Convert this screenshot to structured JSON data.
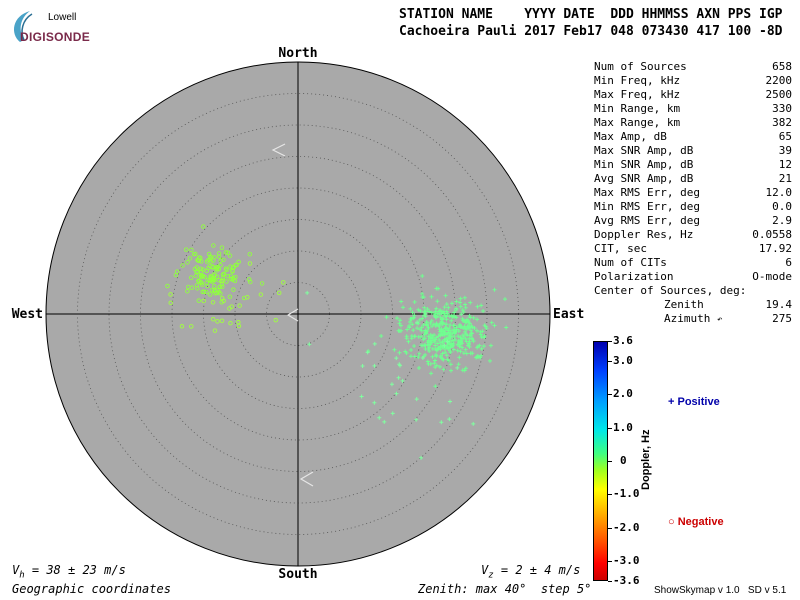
{
  "logo": {
    "top": "Lowell",
    "bottom": "DIGISONDE"
  },
  "header": {
    "line1": "STATION NAME    YYYY DATE  DDD HHMMSS AXN PPS IGP",
    "line2": "Cachoeira Pauli 2017 Feb17 048 073430 417 100 -8D"
  },
  "stats": [
    {
      "label": "Num of Sources",
      "value": "658"
    },
    {
      "label": "Min Freq, kHz",
      "value": "2200"
    },
    {
      "label": "Max Freq, kHz",
      "value": "2500"
    },
    {
      "label": "Min Range, km",
      "value": "330"
    },
    {
      "label": "Max Range, km",
      "value": "382"
    },
    {
      "label": "Max Amp, dB",
      "value": "65"
    },
    {
      "label": "Max SNR Amp, dB",
      "value": "39"
    },
    {
      "label": "Min SNR Amp, dB",
      "value": "12"
    },
    {
      "label": "Avg SNR Amp, dB",
      "value": "21"
    },
    {
      "label": "Max RMS Err, deg",
      "value": "12.0"
    },
    {
      "label": "Min RMS Err, deg",
      "value": "0.0"
    },
    {
      "label": "Avg RMS Err, deg",
      "value": "2.9"
    },
    {
      "label": "Doppler Res, Hz",
      "value": "0.0558"
    },
    {
      "label": "CIT, sec",
      "value": "17.92"
    },
    {
      "label": "Num of CITs",
      "value": "6"
    },
    {
      "label": "Polarization",
      "value": "O-mode"
    },
    {
      "label": "Center of Sources, deg:",
      "value": ""
    }
  ],
  "center": {
    "zenith_label": "Zenith",
    "zenith_value": "19.4",
    "azimuth_label": "Azimuth",
    "azimuth_value": "275"
  },
  "compass": {
    "north": "North",
    "south": "South",
    "east": "East",
    "west": "West"
  },
  "colorbar": {
    "title": "Doppler, Hz",
    "min": -3.6,
    "max": 3.6,
    "ticks": [
      "3.6",
      "3.0",
      "2.0",
      "1.0",
      "0",
      "-1.0",
      "-2.0",
      "-3.0",
      "-3.6"
    ]
  },
  "legend": {
    "positive": "Positive",
    "negative": "Negative"
  },
  "footer": {
    "vh": "V  = 38 ± 23 m/s",
    "vz": "V  = 2 ± 4 m/s",
    "coords": "Geographic coordinates",
    "zenith_info": "Zenith: max 40°  step 5°",
    "version": "ShowSkymap v 1.0   SD v 5.1"
  },
  "chart_data": {
    "type": "scatter",
    "projection": "polar skymap",
    "zenith_max_deg": 40,
    "zenith_step_deg": 5,
    "background_color": "#a9a9a9",
    "grid": "dotted circles every 5 deg",
    "center_of_sources": {
      "zenith": 19.4,
      "azimuth": 275
    },
    "clusters": [
      {
        "name": "Positive",
        "marker": "plus",
        "color": "#70ff90",
        "center_zenith": 23.5,
        "center_azimuth": 97,
        "count": 420,
        "spread_deg": 3.5
      },
      {
        "name": "Positive",
        "marker": "plus",
        "color": "#80ffa0",
        "center_zenith": 20,
        "center_azimuth": 120,
        "count": 30,
        "spread_deg": 7
      },
      {
        "name": "Negative",
        "marker": "circle",
        "color": "#90ff40",
        "center_zenith": 15,
        "center_azimuth": 295,
        "count": 140,
        "spread_deg": 2.5
      },
      {
        "name": "Negative",
        "marker": "circle",
        "color": "#a0ff40",
        "center_zenith": 11,
        "center_azimuth": 280,
        "count": 25,
        "spread_deg": 4.5
      }
    ]
  }
}
